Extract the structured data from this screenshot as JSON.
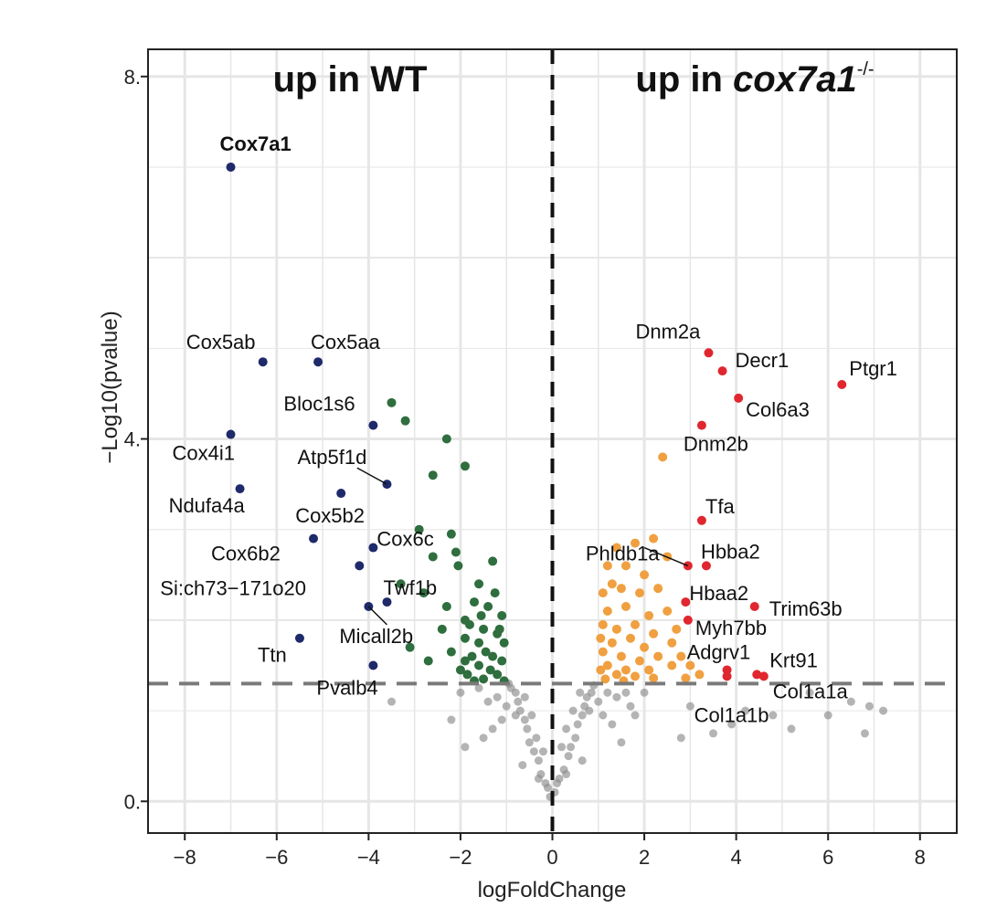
{
  "chart_data": {
    "type": "scatter",
    "xlabel": "logFoldChange",
    "ylabel": "−Log10(pvalue)",
    "xlim": [
      -8.8,
      8.8
    ],
    "ylim": [
      -0.35,
      8.3
    ],
    "x_ticks": [
      -8,
      -6,
      -4,
      -2,
      0,
      2,
      4,
      6,
      8
    ],
    "x_tick_labels": [
      "−8",
      "−6",
      "−4",
      "−2",
      "0",
      "2",
      "4",
      "6",
      "8"
    ],
    "y_ticks": [
      0,
      4,
      8
    ],
    "y_tick_labels": [
      "0.",
      "4.",
      "8."
    ],
    "grid": true,
    "vline_x": 0,
    "hline_y": 1.3,
    "region_titles": {
      "left": "up in WT",
      "right_prefix": "up in ",
      "right_gene": "cox7a1",
      "right_sup": "-/-"
    },
    "colors": {
      "wt_highlight": "#1f2a6b",
      "wt_sig": "#2f6e3e",
      "ko_sig": "#f0a040",
      "ko_highlight": "#e0262e",
      "nonsig": "#8c8c8c",
      "target_label": "#d41c24",
      "grid": "#e6e6e6"
    },
    "series": [
      {
        "kind": "wt_highlight",
        "points": [
          [
            -7.0,
            7.0
          ],
          [
            -6.3,
            4.85
          ],
          [
            -5.1,
            4.85
          ],
          [
            -7.0,
            4.05
          ],
          [
            -6.8,
            3.45
          ],
          [
            -3.9,
            4.15
          ],
          [
            -3.6,
            3.5
          ],
          [
            -4.6,
            3.4
          ],
          [
            -5.2,
            2.9
          ],
          [
            -3.9,
            2.8
          ],
          [
            -4.2,
            2.6
          ],
          [
            -3.6,
            2.2
          ],
          [
            -4.0,
            2.15
          ],
          [
            -5.5,
            1.8
          ],
          [
            -3.9,
            1.5
          ]
        ]
      },
      {
        "kind": "wt_sig",
        "points": [
          [
            -3.5,
            4.4
          ],
          [
            -3.2,
            4.2
          ],
          [
            -2.3,
            4.0
          ],
          [
            -1.9,
            3.7
          ],
          [
            -2.6,
            3.6
          ],
          [
            -2.9,
            3.0
          ],
          [
            -2.2,
            2.95
          ],
          [
            -2.6,
            2.7
          ],
          [
            -2.1,
            2.75
          ],
          [
            -1.3,
            2.65
          ],
          [
            -2.05,
            2.6
          ],
          [
            -3.3,
            2.4
          ],
          [
            -2.8,
            2.3
          ],
          [
            -1.6,
            2.4
          ],
          [
            -1.25,
            2.3
          ],
          [
            -1.7,
            2.2
          ],
          [
            -1.4,
            2.15
          ],
          [
            -2.3,
            2.15
          ],
          [
            -1.9,
            2.0
          ],
          [
            -1.1,
            2.05
          ],
          [
            -1.8,
            1.95
          ],
          [
            -1.5,
            1.9
          ],
          [
            -1.2,
            1.85
          ],
          [
            -2.4,
            1.9
          ],
          [
            -1.9,
            1.8
          ],
          [
            -1.6,
            1.75
          ],
          [
            -1.05,
            1.75
          ],
          [
            -1.45,
            1.65
          ],
          [
            -2.2,
            1.65
          ],
          [
            -1.75,
            1.6
          ],
          [
            -1.3,
            1.6
          ],
          [
            -1.9,
            1.55
          ],
          [
            -1.1,
            1.55
          ],
          [
            -3.1,
            1.7
          ],
          [
            -1.6,
            1.5
          ],
          [
            -1.35,
            1.45
          ],
          [
            -2.0,
            1.45
          ],
          [
            -1.85,
            1.4
          ],
          [
            -1.2,
            1.4
          ],
          [
            -1.5,
            1.35
          ],
          [
            -1.7,
            1.33
          ],
          [
            -1.05,
            1.33
          ],
          [
            -2.7,
            1.55
          ],
          [
            -1.15,
            1.9
          ],
          [
            -1.55,
            2.05
          ]
        ]
      },
      {
        "kind": "ko_sig",
        "points": [
          [
            2.4,
            3.8
          ],
          [
            1.4,
            2.8
          ],
          [
            1.8,
            2.85
          ],
          [
            2.2,
            2.9
          ],
          [
            1.2,
            2.6
          ],
          [
            1.6,
            2.6
          ],
          [
            2.0,
            2.5
          ],
          [
            2.5,
            2.7
          ],
          [
            1.1,
            2.3
          ],
          [
            1.5,
            2.35
          ],
          [
            1.9,
            2.3
          ],
          [
            2.3,
            2.35
          ],
          [
            1.2,
            2.1
          ],
          [
            1.6,
            2.15
          ],
          [
            2.1,
            2.05
          ],
          [
            2.5,
            2.1
          ],
          [
            1.1,
            1.95
          ],
          [
            1.4,
            1.9
          ],
          [
            1.8,
            1.95
          ],
          [
            2.2,
            1.85
          ],
          [
            1.05,
            1.8
          ],
          [
            1.3,
            1.75
          ],
          [
            1.7,
            1.8
          ],
          [
            2.0,
            1.7
          ],
          [
            2.6,
            1.75
          ],
          [
            1.1,
            1.65
          ],
          [
            1.5,
            1.6
          ],
          [
            1.9,
            1.55
          ],
          [
            2.3,
            1.6
          ],
          [
            1.2,
            1.5
          ],
          [
            1.6,
            1.45
          ],
          [
            2.1,
            1.45
          ],
          [
            2.6,
            1.5
          ],
          [
            1.05,
            1.45
          ],
          [
            1.4,
            1.4
          ],
          [
            1.8,
            1.38
          ],
          [
            2.2,
            1.36
          ],
          [
            2.8,
            1.6
          ],
          [
            3.0,
            1.5
          ],
          [
            1.15,
            1.35
          ],
          [
            1.55,
            1.33
          ],
          [
            2.9,
            1.36
          ],
          [
            3.2,
            1.4
          ],
          [
            2.7,
            1.9
          ],
          [
            1.3,
            2.4
          ]
        ]
      },
      {
        "kind": "ko_highlight",
        "points": [
          [
            3.4,
            4.95
          ],
          [
            3.7,
            4.75
          ],
          [
            4.05,
            4.45
          ],
          [
            6.3,
            4.6
          ],
          [
            3.25,
            4.15
          ],
          [
            3.25,
            3.1
          ],
          [
            2.95,
            2.6
          ],
          [
            3.35,
            2.6
          ],
          [
            2.9,
            2.2
          ],
          [
            2.95,
            2.0
          ],
          [
            4.4,
            2.15
          ],
          [
            3.8,
            1.45
          ],
          [
            3.8,
            1.38
          ],
          [
            4.45,
            1.4
          ],
          [
            4.6,
            1.38
          ]
        ]
      },
      {
        "kind": "nonsig",
        "points": [
          [
            -0.05,
            0.05
          ],
          [
            0.05,
            0.1
          ],
          [
            -0.15,
            0.2
          ],
          [
            0.15,
            0.25
          ],
          [
            -0.25,
            0.3
          ],
          [
            0.25,
            0.35
          ],
          [
            -0.3,
            0.45
          ],
          [
            0.35,
            0.5
          ],
          [
            -0.4,
            0.55
          ],
          [
            0.4,
            0.6
          ],
          [
            -0.5,
            0.65
          ],
          [
            0.5,
            0.7
          ],
          [
            -0.55,
            0.8
          ],
          [
            0.55,
            0.85
          ],
          [
            -0.6,
            0.9
          ],
          [
            0.65,
            0.95
          ],
          [
            -0.7,
            1.0
          ],
          [
            0.7,
            1.05
          ],
          [
            -0.75,
            1.1
          ],
          [
            0.75,
            1.15
          ],
          [
            -0.8,
            1.2
          ],
          [
            0.85,
            1.2
          ],
          [
            -0.9,
            1.25
          ],
          [
            0.9,
            1.28
          ],
          [
            -0.95,
            1.3
          ],
          [
            -0.35,
            0.7
          ],
          [
            0.3,
            0.8
          ],
          [
            -0.45,
            0.95
          ],
          [
            0.45,
            1.0
          ],
          [
            -0.6,
            1.15
          ],
          [
            0.6,
            1.2
          ],
          [
            -0.2,
            0.55
          ],
          [
            0.2,
            0.6
          ],
          [
            -0.8,
            0.95
          ],
          [
            0.8,
            1.0
          ],
          [
            -1.0,
            1.05
          ],
          [
            1.0,
            1.1
          ],
          [
            -1.2,
            1.15
          ],
          [
            1.2,
            1.2
          ],
          [
            -1.4,
            1.1
          ],
          [
            1.4,
            1.15
          ],
          [
            -1.6,
            1.25
          ],
          [
            1.6,
            1.2
          ],
          [
            -2.0,
            1.2
          ],
          [
            2.0,
            1.2
          ],
          [
            -1.1,
            0.9
          ],
          [
            1.1,
            0.95
          ],
          [
            -1.3,
            0.8
          ],
          [
            1.3,
            0.85
          ],
          [
            -2.2,
            0.9
          ],
          [
            1.8,
            0.95
          ],
          [
            -3.5,
            1.1
          ],
          [
            3.0,
            1.05
          ],
          [
            3.9,
            0.85
          ],
          [
            2.8,
            0.7
          ],
          [
            3.5,
            0.75
          ],
          [
            4.2,
            1.0
          ],
          [
            5.6,
            1.2
          ],
          [
            6.0,
            0.95
          ],
          [
            6.5,
            1.1
          ],
          [
            6.9,
            1.05
          ],
          [
            7.2,
            1.0
          ],
          [
            6.8,
            0.75
          ],
          [
            5.2,
            0.8
          ],
          [
            4.8,
            0.95
          ],
          [
            -1.9,
            0.6
          ],
          [
            -1.5,
            0.7
          ],
          [
            1.5,
            0.65
          ],
          [
            -0.65,
            0.4
          ],
          [
            0.65,
            0.45
          ],
          [
            -0.1,
            0.15
          ],
          [
            0.1,
            0.2
          ],
          [
            -0.3,
            0.25
          ],
          [
            0.3,
            0.3
          ],
          [
            1.7,
            1.05
          ]
        ]
      }
    ],
    "labels": [
      {
        "text": "Cox7a1",
        "x": -7.0,
        "y": 7.0,
        "dx": -12,
        "dy": -18,
        "anchor": "start",
        "target": true
      },
      {
        "text": "Cox5ab",
        "x": -6.3,
        "y": 4.85,
        "dx": -84,
        "dy": -14,
        "anchor": "start"
      },
      {
        "text": "Cox5aa",
        "x": -5.1,
        "y": 4.85,
        "dx": -8,
        "dy": -14,
        "anchor": "start"
      },
      {
        "text": "Bloc1s6",
        "x": -3.9,
        "y": 4.15,
        "dx": -98,
        "dy": -16,
        "anchor": "start"
      },
      {
        "text": "Atp5f1d",
        "x": -3.6,
        "y": 3.5,
        "dx": -98,
        "dy": -22,
        "anchor": "start",
        "leader": [
          -3.6,
          3.5,
          -4.25,
          3.68
        ]
      },
      {
        "text": "Cox4i1",
        "x": -7.0,
        "y": 4.05,
        "dx": -64,
        "dy": 28,
        "anchor": "start"
      },
      {
        "text": "Ndufa4a",
        "x": -6.8,
        "y": 3.45,
        "dx": -78,
        "dy": 26,
        "anchor": "start"
      },
      {
        "text": "Cox5b2",
        "x": -4.6,
        "y": 3.4,
        "dx": -50,
        "dy": 32,
        "anchor": "start"
      },
      {
        "text": "Cox6c",
        "x": -3.9,
        "y": 2.8,
        "dx": 4,
        "dy": -2,
        "anchor": "start"
      },
      {
        "text": "Cox6b2",
        "x": -5.2,
        "y": 2.9,
        "dx": -112,
        "dy": 24,
        "anchor": "start"
      },
      {
        "text": "Si:ch73−171o20",
        "x": -4.2,
        "y": 2.6,
        "dx": -218,
        "dy": 32,
        "anchor": "start"
      },
      {
        "text": "Twf1b",
        "x": -3.6,
        "y": 2.2,
        "dx": -4,
        "dy": -8,
        "anchor": "start"
      },
      {
        "text": "Micall2b",
        "x": -4.0,
        "y": 2.15,
        "dx": -32,
        "dy": 40,
        "anchor": "start",
        "leader": [
          -4.0,
          2.15,
          -3.6,
          1.95
        ]
      },
      {
        "text": "Ttn",
        "x": -5.5,
        "y": 1.8,
        "dx": -46,
        "dy": 26,
        "anchor": "start"
      },
      {
        "text": "Pvalb4",
        "x": -3.9,
        "y": 1.5,
        "dx": -62,
        "dy": 32,
        "anchor": "start"
      },
      {
        "text": "Dnm2a",
        "x": 3.4,
        "y": 4.95,
        "dx": -80,
        "dy": -16,
        "anchor": "start"
      },
      {
        "text": "Decr1",
        "x": 3.7,
        "y": 4.75,
        "dx": 14,
        "dy": -4,
        "anchor": "start"
      },
      {
        "text": "Ptgr1",
        "x": 6.3,
        "y": 4.6,
        "dx": 8,
        "dy": -10,
        "anchor": "start"
      },
      {
        "text": "Col6a3",
        "x": 4.05,
        "y": 4.45,
        "dx": 8,
        "dy": 20,
        "anchor": "start"
      },
      {
        "text": "Dnm2b",
        "x": 3.25,
        "y": 4.15,
        "dx": -20,
        "dy": 28,
        "anchor": "start"
      },
      {
        "text": "Tfa",
        "x": 3.25,
        "y": 3.1,
        "dx": 4,
        "dy": -8,
        "anchor": "start"
      },
      {
        "text": "Phldb1a",
        "x": 2.95,
        "y": 2.6,
        "dx": -112,
        "dy": -6,
        "anchor": "start",
        "leader": [
          2.95,
          2.6,
          2.0,
          2.8
        ]
      },
      {
        "text": "Hbba2",
        "x": 3.35,
        "y": 2.6,
        "dx": -6,
        "dy": -8,
        "anchor": "start"
      },
      {
        "text": "Hbaa2",
        "x": 2.9,
        "y": 2.2,
        "dx": 4,
        "dy": -2,
        "anchor": "start"
      },
      {
        "text": "Trim63b",
        "x": 4.4,
        "y": 2.15,
        "dx": 16,
        "dy": 10,
        "anchor": "start"
      },
      {
        "text": "Myh7bb",
        "x": 2.95,
        "y": 2.0,
        "dx": 8,
        "dy": 16,
        "anchor": "start"
      },
      {
        "text": "Adgrv1",
        "x": 3.8,
        "y": 1.45,
        "dx": -44,
        "dy": -12,
        "anchor": "start"
      },
      {
        "text": "Krt91",
        "x": 4.45,
        "y": 1.4,
        "dx": 14,
        "dy": -8,
        "anchor": "start"
      },
      {
        "text": "Col1a1a",
        "x": 4.6,
        "y": 1.38,
        "dx": 10,
        "dy": 24,
        "anchor": "start"
      },
      {
        "text": "Col1a1b",
        "x": 3.8,
        "y": 1.38,
        "dx": -36,
        "dy": 50,
        "anchor": "start"
      }
    ]
  }
}
